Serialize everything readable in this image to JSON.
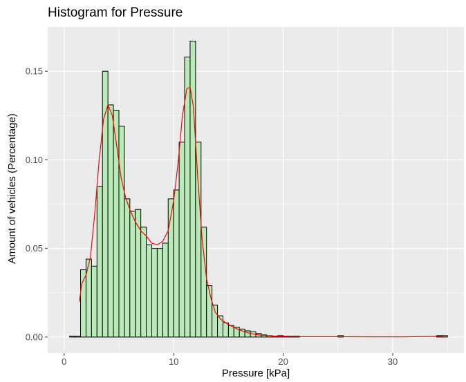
{
  "chart_data": {
    "type": "bar",
    "title": "Histogram for Pressure",
    "xlabel": "Pressure [kPa]",
    "ylabel": "Amount of vehicles (Percentage)",
    "xlim": [
      -1.5,
      36.5
    ],
    "ylim": [
      -0.009,
      0.175
    ],
    "x_ticks": [
      0,
      10,
      20,
      30
    ],
    "y_ticks": [
      0.0,
      0.05,
      0.1,
      0.15
    ],
    "y_tick_labels": [
      "0.00",
      "0.05",
      "0.10",
      "0.15"
    ],
    "bin_width": 0.5,
    "grid": true,
    "legend": "none",
    "colors": {
      "background": "#ebebeb",
      "grid": "#ffffff",
      "bar_fill": "#b8ebb8",
      "bar_stroke": "#000000",
      "density_line": "#ff0000"
    },
    "histogram": {
      "bin_left": [
        0.5,
        1.0,
        1.5,
        2.0,
        2.5,
        3.0,
        3.5,
        4.0,
        4.5,
        5.0,
        5.5,
        6.0,
        6.5,
        7.0,
        7.5,
        8.0,
        8.5,
        9.0,
        9.5,
        10.0,
        10.5,
        11.0,
        11.5,
        12.0,
        12.5,
        13.0,
        13.5,
        14.0,
        14.5,
        15.0,
        15.5,
        16.0,
        16.5,
        17.0,
        17.5,
        18.0,
        18.5,
        19.0,
        19.5,
        20.0,
        20.5,
        21.0,
        25.0,
        34.0,
        34.5
      ],
      "values": [
        0.0005,
        0.0005,
        0.038,
        0.044,
        0.04,
        0.085,
        0.15,
        0.131,
        0.128,
        0.119,
        0.078,
        0.071,
        0.072,
        0.062,
        0.052,
        0.05,
        0.05,
        0.053,
        0.078,
        0.083,
        0.11,
        0.158,
        0.167,
        0.11,
        0.062,
        0.029,
        0.018,
        0.012,
        0.008,
        0.0065,
        0.0055,
        0.0045,
        0.0035,
        0.003,
        0.002,
        0.0012,
        0.0008,
        0.0005,
        0.0008,
        0.0005,
        0.0005,
        0.0005,
        0.0008,
        0.0008,
        0.0008
      ]
    },
    "density": {
      "x": [
        1.4,
        1.6,
        2.0,
        2.4,
        2.8,
        3.2,
        3.6,
        4.0,
        4.4,
        4.8,
        5.2,
        5.6,
        6.0,
        6.5,
        7.0,
        7.5,
        8.0,
        8.5,
        9.0,
        9.5,
        10.0,
        10.4,
        10.8,
        11.2,
        11.5,
        11.8,
        12.2,
        12.6,
        13.0,
        13.4,
        13.8,
        14.3,
        15.0,
        16.0,
        17.0,
        18.0,
        19.0,
        20.0,
        22.0,
        25.0,
        28.0,
        31.0,
        34.0,
        35.0
      ],
      "y": [
        0.02,
        0.03,
        0.035,
        0.045,
        0.07,
        0.1,
        0.123,
        0.131,
        0.125,
        0.108,
        0.09,
        0.079,
        0.072,
        0.065,
        0.06,
        0.057,
        0.053,
        0.052,
        0.054,
        0.06,
        0.077,
        0.098,
        0.125,
        0.14,
        0.141,
        0.13,
        0.09,
        0.055,
        0.033,
        0.022,
        0.014,
        0.01,
        0.007,
        0.004,
        0.002,
        0.001,
        0.0006,
        0.0004,
        0.0002,
        0.0002,
        0.0001,
        0.0001,
        0.0004,
        0.0001
      ]
    }
  }
}
